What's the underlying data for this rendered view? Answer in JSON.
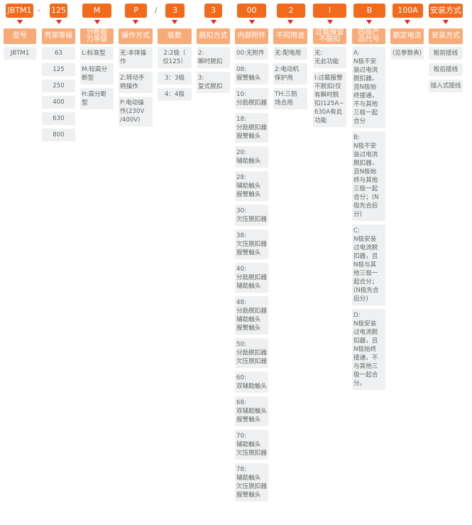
{
  "colors": {
    "code_bg": "#f26b1d",
    "header_bg": "#f9ab77",
    "arrow": "#e8232a",
    "cell_bg": "#eef0f1",
    "text": "#666666"
  },
  "separators": [
    "-",
    "/"
  ],
  "columns": [
    {
      "code": "JBTM1",
      "header": "型号",
      "items": [
        "JBTM1"
      ]
    },
    {
      "code": "125",
      "header": "壳架等级",
      "items": [
        "63",
        "125",
        "250",
        "400",
        "630",
        "800"
      ]
    },
    {
      "code": "M",
      "header": "分断能\n力等级",
      "items": [
        "L:标准型",
        "M:较高分\n断型",
        "H:高分断\n型"
      ]
    },
    {
      "code": "P",
      "header": "操作方式",
      "items": [
        "无:本体操\n作",
        "Z:转动手\n柄操作",
        "P:电动操\n作(230V\n/400V)"
      ]
    },
    {
      "code": "3",
      "header": "极数",
      "items": [
        "2:2极（\n仅125）",
        "3：3极",
        "4：4极"
      ]
    },
    {
      "code": "3",
      "header": "脱扣方式",
      "items": [
        "2:\n瞬时脱扣",
        "3:\n复式脱扣"
      ]
    },
    {
      "code": "00",
      "header": "内部附件",
      "items": [
        "00:无附件",
        "08:\n报警触头",
        "10:\n分励脱扣器",
        "18:\n分励脱扣器\n报警触头",
        "20:\n辅助触头",
        "28:\n辅助触头\n报警触头",
        "30:\n欠压脱扣器",
        "38:\n欠压脱扣器\n报警触头",
        "40:\n分励脱扣器\n辅助触头",
        "48:\n分励脱扣器\n辅助触头\n报警触头",
        "50:\n分励脱扣器\n欠压脱扣器",
        "60:\n双辅助触头",
        "68:\n双辅助触头\n报警触头",
        "70:\n辅助触头\n欠压脱扣器",
        "78:\n辅助触头\n欠压脱扣器\n报警触头"
      ]
    },
    {
      "code": "2",
      "header": "不同用途",
      "items": [
        "无:配电用",
        "2:电动机\n保护用",
        "TH:三防\n场合用"
      ]
    },
    {
      "code": "I",
      "header": "过载报警\n不脱扣",
      "items": [
        "无:\n无此功能",
        "I:过载报警\n不脱扣(仅\n有瞬时脱\n扣)125A~\n630A有此\n功能"
      ]
    },
    {
      "code": "B",
      "header": "四极产\n品代号",
      "items": [
        "A:\nN极不安\n装过电流\n脱扣器，\n且N极始\n终接通，\n不与其他\n三极一起\n合分",
        "B:\nN极不安\n装过电流\n脱扣器，\n且N极始\n终与其他\n三极一起\n合分；(N\n极先合后\n分)",
        "C:\nN极安装\n过电流脱\n扣器，且\nN极与其\n他三极一\n起合分；\n(N极先合\n后分)",
        "D:\nN极安装\n过电流脱\n扣器，且\nN极始终\n接通，不\n与其他三\n极一起合\n分。"
      ]
    },
    {
      "code": "100A",
      "header": "额定电流",
      "items": [
        "(见参数表)"
      ]
    },
    {
      "code": "安装方式",
      "header": "安装方式",
      "items": [
        "板前接线",
        "板后接线",
        "插入式接线"
      ]
    }
  ]
}
